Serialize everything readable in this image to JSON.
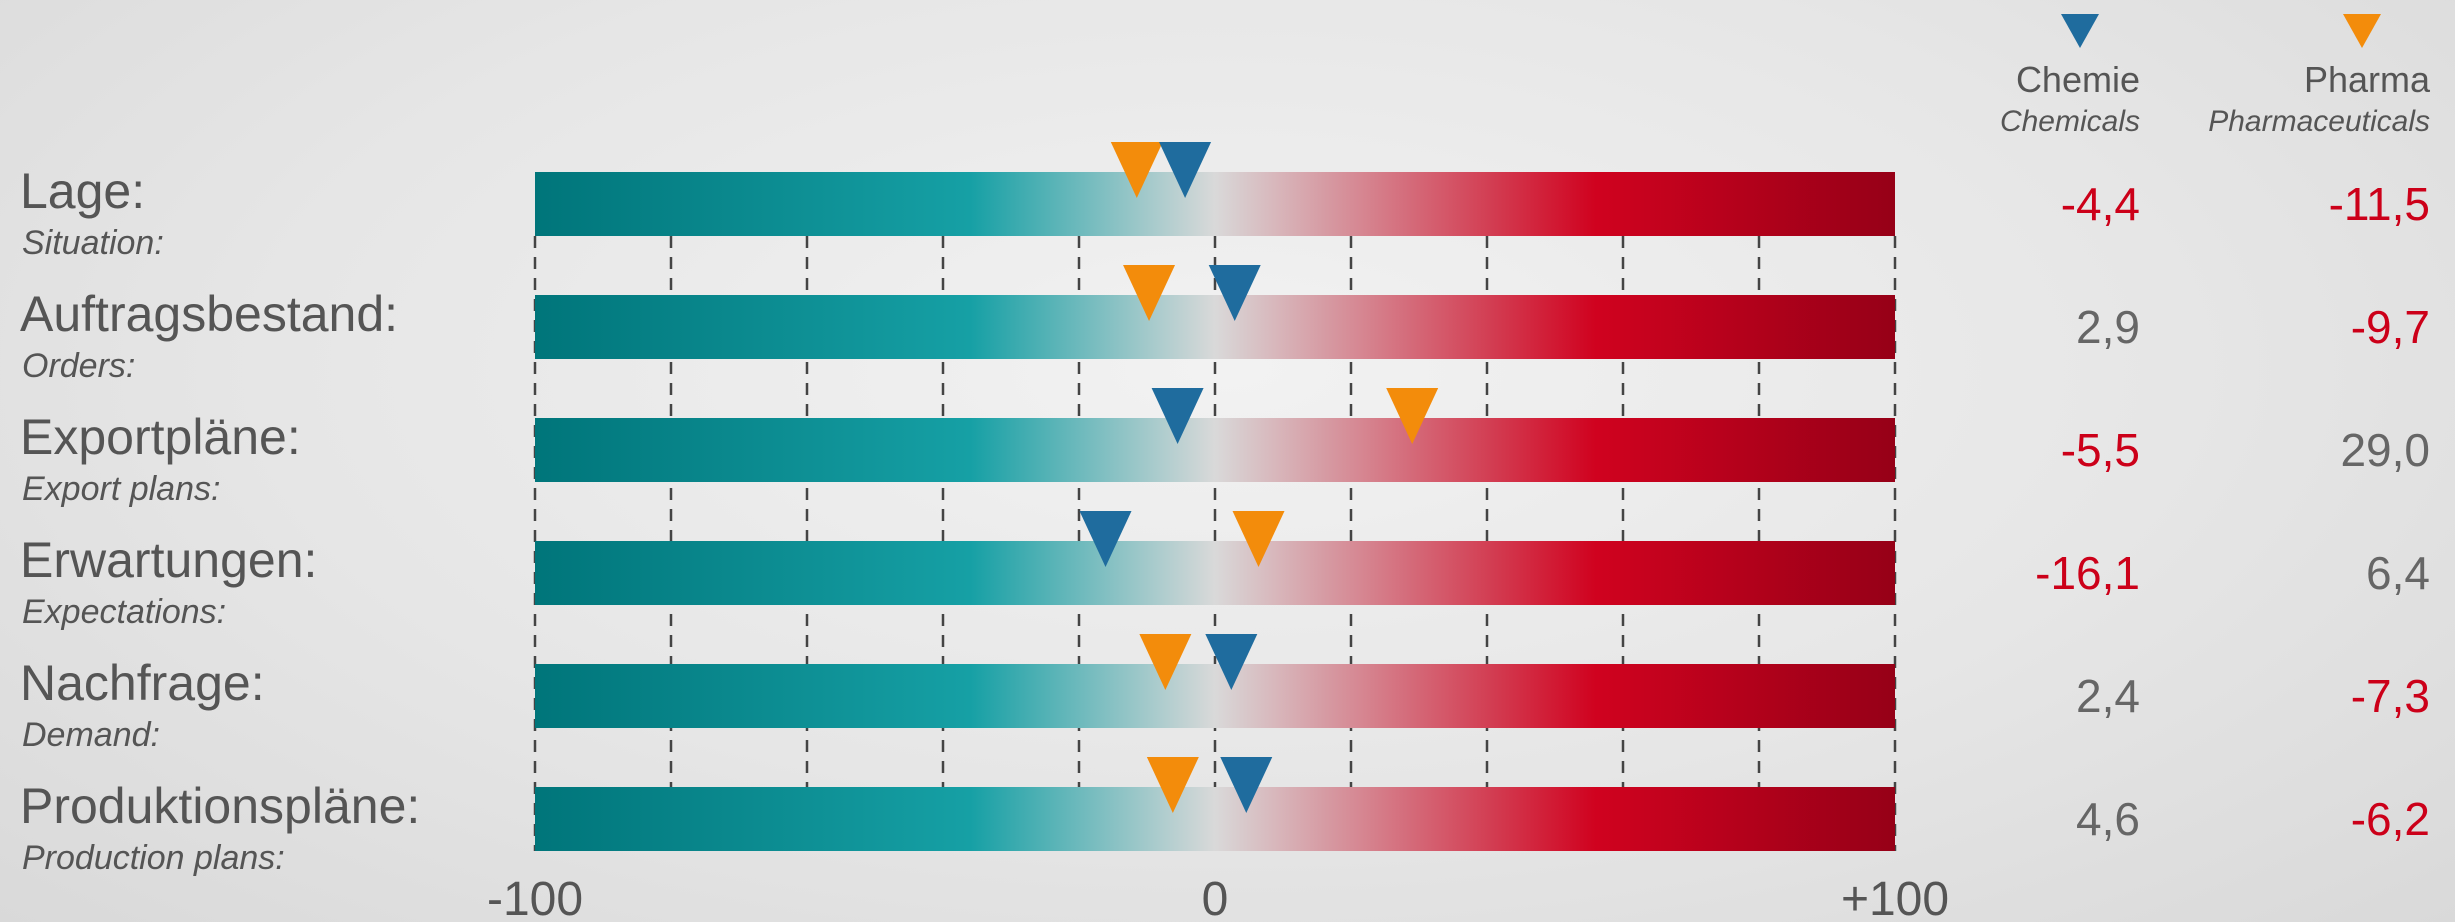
{
  "colors": {
    "chemie": "#1f6c9e",
    "pharma": "#f38c0b",
    "negative_value": "#cc0019",
    "neutral_value": "#666666",
    "bar_left": "#00757a",
    "bar_mid": "#d9d9d9",
    "bar_right": "#960017"
  },
  "legend": [
    {
      "key": "chemie",
      "label_de": "Chemie",
      "label_en": "Chemicals",
      "marker": "down-triangle-icon"
    },
    {
      "key": "pharma",
      "label_de": "Pharma",
      "label_en": "Pharmaceuticals",
      "marker": "down-triangle-icon"
    }
  ],
  "chart_data": {
    "type": "bar",
    "orientation": "horizontal",
    "marker_style": "down-triangle",
    "xlim": [
      -100,
      100
    ],
    "x_ticks": [
      "-100",
      "0",
      "+100"
    ],
    "x_gridlines_every": 20,
    "legend_position": "top-right",
    "categories": [
      {
        "de": "Lage:",
        "en": "Situation:"
      },
      {
        "de": "Auftragsbestand:",
        "en": "Orders:"
      },
      {
        "de": "Exportpläne:",
        "en": "Export plans:"
      },
      {
        "de": "Erwartungen:",
        "en": "Expectations:"
      },
      {
        "de": "Nachfrage:",
        "en": "Demand:"
      },
      {
        "de": "Produktionspläne:",
        "en": "Production plans:"
      }
    ],
    "series": [
      {
        "name": "Chemie",
        "key": "chemie",
        "values": [
          -4.4,
          2.9,
          -5.5,
          -16.1,
          2.4,
          4.6
        ],
        "labels": [
          "-4,4",
          "2,9",
          "-5,5",
          "-16,1",
          "2,4",
          "4,6"
        ]
      },
      {
        "name": "Pharma",
        "key": "pharma",
        "values": [
          -11.5,
          -9.7,
          29.0,
          6.4,
          -7.3,
          -6.2
        ],
        "labels": [
          "-11,5",
          "-9,7",
          "29,0",
          "6,4",
          "-7,3",
          "-6,2"
        ]
      }
    ]
  }
}
